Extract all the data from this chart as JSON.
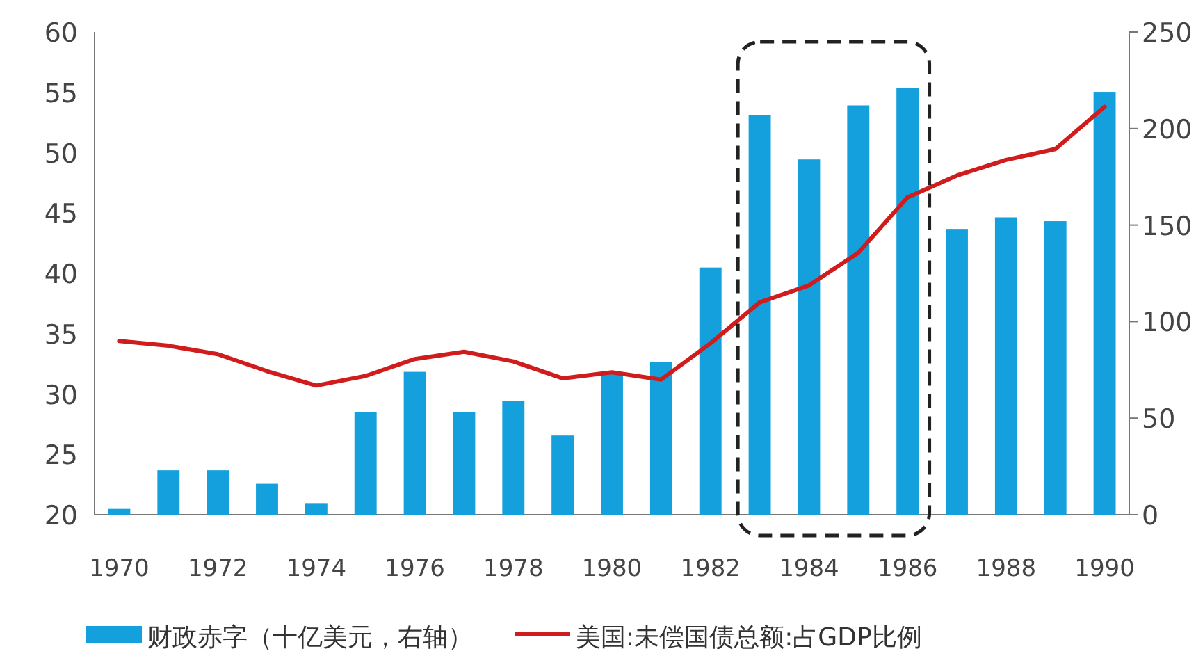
{
  "chart_data": {
    "type": "bar",
    "categories": [
      "1970",
      null,
      "1972",
      null,
      "1974",
      null,
      "1976",
      null,
      "1978",
      null,
      "1980",
      null,
      "1982",
      null,
      "1984",
      null,
      "1986",
      null,
      "1988",
      null,
      "1990"
    ],
    "series": [
      {
        "name": "财政赤字（十亿美元，右轴）",
        "axis": "y2",
        "color": "#14a0dc",
        "values": [
          3,
          23,
          23,
          16,
          6,
          53,
          74,
          53,
          59,
          41,
          73,
          79,
          128,
          207,
          184,
          212,
          221,
          148,
          154,
          152,
          219
        ]
      },
      {
        "name": "美国:未偿国债总额:占GDP比例",
        "type": "line",
        "color": "#d01c1c",
        "values": [
          34.4,
          34.0,
          33.3,
          31.9,
          30.7,
          31.5,
          32.9,
          33.5,
          32.7,
          31.3,
          31.8,
          31.2,
          34.2,
          37.6,
          39.0,
          41.7,
          46.3,
          48.1,
          49.4,
          50.3,
          53.8
        ]
      }
    ],
    "ylim": [
      20,
      60
    ],
    "yticks": [
      20,
      25,
      30,
      35,
      40,
      45,
      50,
      55,
      60
    ],
    "y2lim": [
      0,
      250
    ],
    "y2ticks": [
      0,
      50,
      100,
      150,
      200,
      250
    ],
    "legend": "bottom",
    "grid": false
  }
}
